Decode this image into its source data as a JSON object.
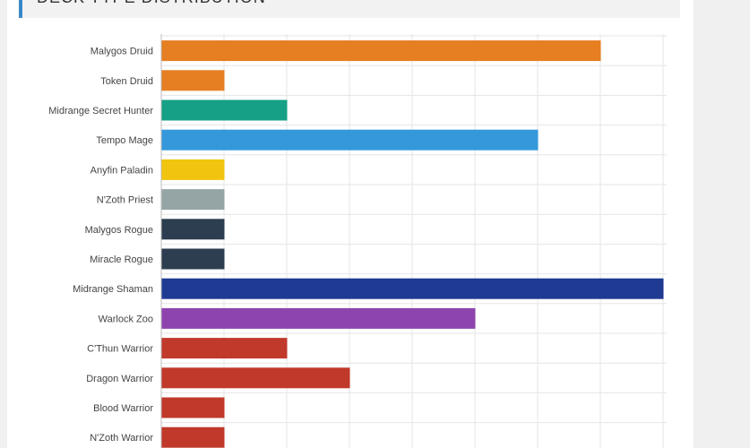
{
  "header": {
    "title": "DECK TYPE DISTRIBUTION"
  },
  "colors": {
    "accent": "#3a87c8",
    "gridline": "#e6e6e6"
  },
  "chart_data": {
    "type": "bar",
    "orientation": "horizontal",
    "title": "DECK TYPE DISTRIBUTION",
    "xlim": [
      0,
      8
    ],
    "grid": true,
    "categories": [
      "Malygos Druid",
      "Token Druid",
      "Midrange Secret Hunter",
      "Tempo Mage",
      "Anyfin Paladin",
      "N'Zoth Priest",
      "Malygos Rogue",
      "Miracle Rogue",
      "Midrange Shaman",
      "Warlock Zoo",
      "C'Thun Warrior",
      "Dragon Warrior",
      "Blood Warrior",
      "N'Zoth Warrior"
    ],
    "values": [
      7,
      1,
      2,
      6,
      1,
      1,
      1,
      1,
      8,
      5,
      2,
      3,
      1,
      1
    ],
    "colors": [
      "#e67e22",
      "#e67e22",
      "#16a085",
      "#3498db",
      "#f1c40f",
      "#95a5a6",
      "#2c3e50",
      "#2c3e50",
      "#1f3a93",
      "#8e44ad",
      "#c0392b",
      "#c0392b",
      "#c0392b",
      "#c0392b"
    ]
  }
}
